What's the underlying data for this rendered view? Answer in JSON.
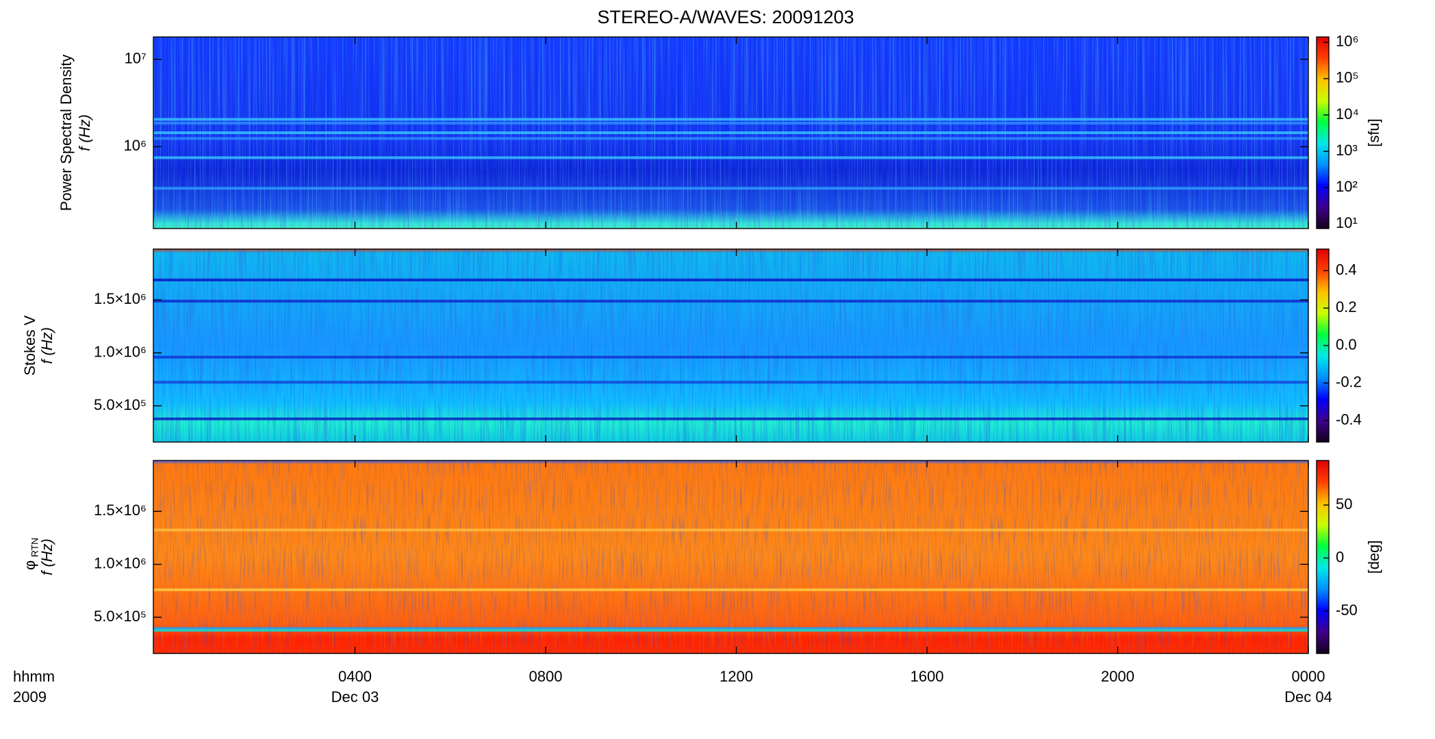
{
  "title": "STEREO-A/WAVES: 20091203",
  "colormap": [
    "#14001e",
    "#40008c",
    "#0000ff",
    "#0090ff",
    "#00e8e8",
    "#00ff40",
    "#c8ff00",
    "#ffc000",
    "#ff4000",
    "#e00000"
  ],
  "x_axis": {
    "xlim": [
      -0.23,
      24
    ],
    "xticks": [
      {
        "value": 4,
        "label": "0400"
      },
      {
        "value": 8,
        "label": "0800"
      },
      {
        "value": 12,
        "label": "1200"
      },
      {
        "value": 16,
        "label": "1600"
      },
      {
        "value": 20,
        "label": "2000"
      },
      {
        "value": 24,
        "label": "0000"
      }
    ],
    "date_labels": [
      {
        "value": 4,
        "label": "Dec 03"
      },
      {
        "value": 24,
        "label": "Dec 04"
      }
    ],
    "unit_label": "hhmm",
    "year_label": "2009"
  },
  "chart_data": [
    {
      "type": "spectrogram",
      "ylabel": "Power Spectral Density",
      "ylabel_2": "f (Hz)",
      "yscale": "log",
      "ylim": [
        116000,
        18000000
      ],
      "yticks": [
        {
          "value": 1000000,
          "label": "10⁶"
        },
        {
          "value": 10000000,
          "label": "10⁷"
        }
      ],
      "colorbar": {
        "scale": "log",
        "lim": [
          7.5,
          1400000
        ],
        "ticks": [
          {
            "value": 10,
            "label": "10¹"
          },
          {
            "value": 100,
            "label": "10²"
          },
          {
            "value": 1000,
            "label": "10³"
          },
          {
            "value": 10000,
            "label": "10⁴"
          },
          {
            "value": 100000,
            "label": "10⁵"
          },
          {
            "value": 1000000,
            "label": "10⁶"
          }
        ],
        "label": "[sfu]"
      }
    },
    {
      "type": "spectrogram",
      "ylabel": "Stokes V",
      "ylabel_2": "f (Hz)",
      "yscale": "linear",
      "ylim": [
        158000,
        1980000
      ],
      "yticks": [
        {
          "value": 500000,
          "label": "5.0×10⁵"
        },
        {
          "value": 1000000,
          "label": "1.0×10⁶"
        },
        {
          "value": 1500000,
          "label": "1.5×10⁶"
        }
      ],
      "colorbar": {
        "scale": "linear",
        "lim": [
          -0.515,
          0.515
        ],
        "ticks": [
          -0.4,
          -0.2,
          {
            "value": 0,
            "label": "0.0"
          },
          0.2,
          0.4
        ]
      }
    },
    {
      "type": "spectrogram",
      "ylabel": "φ",
      "ylabel_sub": "RTN",
      "ylabel_2": "f (Hz)",
      "yscale": "linear",
      "ylim": [
        158000,
        1980000
      ],
      "yticks": [
        {
          "value": 500000,
          "label": "5.0×10⁵"
        },
        {
          "value": 1000000,
          "label": "1.0×10⁶"
        },
        {
          "value": 1500000,
          "label": "1.5×10⁶"
        }
      ],
      "colorbar": {
        "scale": "linear",
        "lim": [
          -90,
          92
        ],
        "ticks": [
          -50,
          0,
          50
        ],
        "label": "[deg]"
      }
    }
  ]
}
